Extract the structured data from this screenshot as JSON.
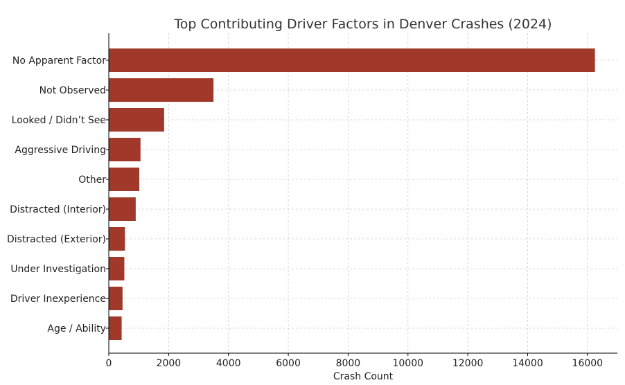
{
  "chart_data": {
    "type": "bar",
    "orientation": "horizontal",
    "title": "Top Contributing Driver Factors in Denver Crashes (2024)",
    "xlabel": "Crash Count",
    "ylabel": "",
    "categories": [
      "No Apparent Factor",
      "Not Observed",
      "Looked / Didn’t See",
      "Aggressive Driving",
      "Other",
      "Distracted (Interior)",
      "Distracted (Exterior)",
      "Under Investigation",
      "Driver Inexperience",
      "Age / Ability"
    ],
    "values": [
      16250,
      3500,
      1850,
      1060,
      1020,
      900,
      540,
      520,
      460,
      430
    ],
    "xlim": [
      0,
      17000
    ],
    "xticks": [
      0,
      2000,
      4000,
      6000,
      8000,
      10000,
      12000,
      14000,
      16000
    ],
    "grid": true,
    "bar_color": "#a0392a"
  }
}
